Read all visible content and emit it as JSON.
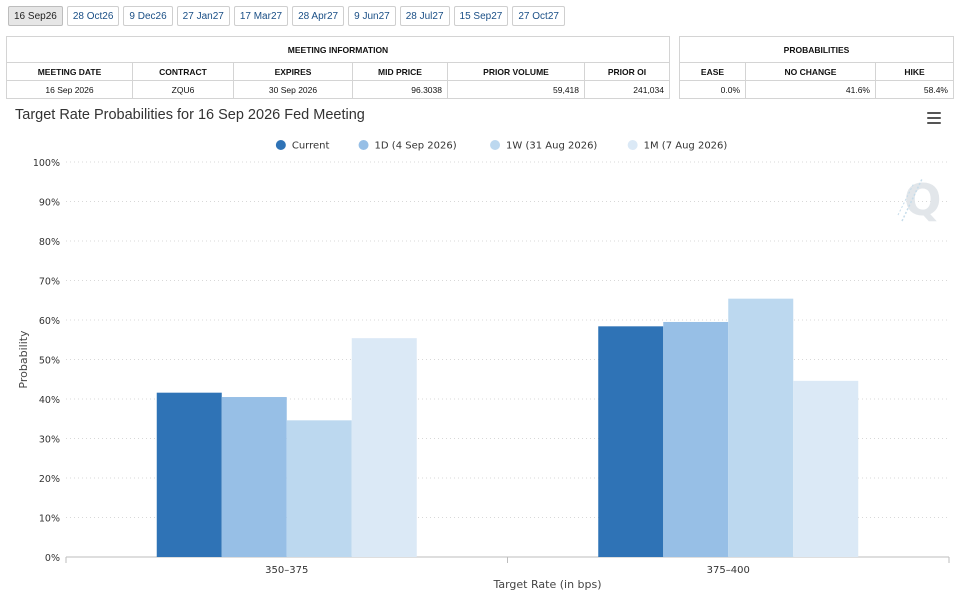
{
  "tabs": [
    "16 Sep26",
    "28 Oct26",
    "9 Dec26",
    "27 Jan27",
    "17 Mar27",
    "28 Apr27",
    "9 Jun27",
    "28 Jul27",
    "15 Sep27",
    "27 Oct27"
  ],
  "active_tab": "16 Sep26",
  "meeting_info": {
    "caption": "MEETING INFORMATION",
    "headers": [
      "MEETING DATE",
      "CONTRACT",
      "EXPIRES",
      "MID PRICE",
      "PRIOR VOLUME",
      "PRIOR OI"
    ],
    "row": [
      "16 Sep 2026",
      "ZQU6",
      "30 Sep 2026",
      "96.3038",
      "59,418",
      "241,034"
    ]
  },
  "probabilities": {
    "caption": "PROBABILITIES",
    "headers": [
      "EASE",
      "NO CHANGE",
      "HIKE"
    ],
    "row": [
      "0.0%",
      "41.6%",
      "58.4%"
    ]
  },
  "chart_data": {
    "type": "bar",
    "title": "Target Rate Probabilities for 16 Sep 2026 Fed Meeting",
    "xlabel": "Target Rate (in bps)",
    "ylabel": "Probability",
    "categories": [
      "350-375",
      "375-400"
    ],
    "ylim": [
      0,
      100
    ],
    "yticks": [
      0,
      10,
      20,
      30,
      40,
      50,
      60,
      70,
      80,
      90,
      100
    ],
    "ytick_suffix": "%",
    "grid": true,
    "legend_position": "top-center",
    "series": [
      {
        "name": "Current",
        "values": [
          41.6,
          58.4
        ],
        "color": "#2f73b6"
      },
      {
        "name": "1D (4 Sep 2026)",
        "values": [
          40.5,
          59.5
        ],
        "color": "#97bfe6"
      },
      {
        "name": "1W (31 Aug 2026)",
        "values": [
          34.6,
          65.4
        ],
        "color": "#bcd8ef"
      },
      {
        "name": "1M (7 Aug 2026)",
        "values": [
          55.4,
          44.6
        ],
        "color": "#dbe9f6"
      }
    ]
  }
}
